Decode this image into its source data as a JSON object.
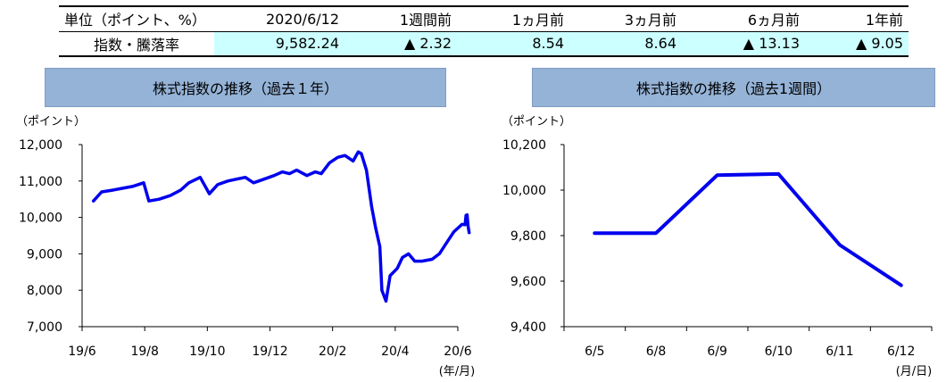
{
  "summary": {
    "headers": [
      "単位（ポイント、%）",
      "2020/6/12",
      "1週間前",
      "1ヵ月前",
      "3ヵ月前",
      "6ヵ月前",
      "1年前"
    ],
    "row_label": "指数・騰落率",
    "values": [
      "9,582.24",
      "▲ 2.32",
      "8.54",
      "8.64",
      "▲ 13.13",
      "▲ 9.05"
    ]
  },
  "colors": {
    "line": "#0000ee",
    "banner": "#95b3d7",
    "highlight": "#ccffff"
  },
  "chart_data": [
    {
      "type": "line",
      "title": "株式指数の推移（過去１年）",
      "y_unit": "（ポイント）",
      "x_unit": "(年/月)",
      "ylim": [
        7000,
        12000
      ],
      "yticks": [
        7000,
        8000,
        9000,
        10000,
        11000,
        12000
      ],
      "ytick_labels": [
        "7,000",
        "8,000",
        "9,000",
        "10,000",
        "11,000",
        "12,000"
      ],
      "xtick_labels": [
        "19/6",
        "19/8",
        "19/10",
        "19/12",
        "20/2",
        "20/4",
        "20/6"
      ],
      "x": [
        "2019-06-12",
        "2019-06-20",
        "2019-07-01",
        "2019-07-10",
        "2019-07-20",
        "2019-07-31",
        "2019-08-05",
        "2019-08-15",
        "2019-08-26",
        "2019-09-05",
        "2019-09-13",
        "2019-09-24",
        "2019-10-03",
        "2019-10-11",
        "2019-10-21",
        "2019-10-29",
        "2019-11-07",
        "2019-11-15",
        "2019-11-25",
        "2019-12-05",
        "2019-12-13",
        "2019-12-20",
        "2019-12-27",
        "2020-01-06",
        "2020-01-14",
        "2020-01-20",
        "2020-01-28",
        "2020-02-05",
        "2020-02-12",
        "2020-02-20",
        "2020-02-25",
        "2020-02-28",
        "2020-03-04",
        "2020-03-09",
        "2020-03-13",
        "2020-03-17",
        "2020-03-19",
        "2020-03-23",
        "2020-03-27",
        "2020-04-03",
        "2020-04-08",
        "2020-04-14",
        "2020-04-20",
        "2020-04-27",
        "2020-05-07",
        "2020-05-14",
        "2020-05-21",
        "2020-05-28",
        "2020-06-05",
        "2020-06-08",
        "2020-06-09",
        "2020-06-10",
        "2020-06-11",
        "2020-06-12"
      ],
      "y": [
        10450,
        10700,
        10750,
        10800,
        10850,
        10950,
        10450,
        10500,
        10600,
        10750,
        10950,
        11100,
        10650,
        10900,
        11000,
        11050,
        11100,
        10950,
        11050,
        11150,
        11250,
        11200,
        11300,
        11150,
        11250,
        11200,
        11500,
        11650,
        11700,
        11550,
        11800,
        11750,
        11300,
        10300,
        9700,
        9200,
        8000,
        7700,
        8400,
        8600,
        8900,
        9000,
        8800,
        8800,
        8850,
        9000,
        9300,
        9600,
        9810,
        9800,
        10060,
        10070,
        9760,
        9582
      ]
    },
    {
      "type": "line",
      "title": "株式指数の推移（過去1週間）",
      "y_unit": "（ポイント）",
      "x_unit": "(月/日)",
      "ylim": [
        9400,
        10200
      ],
      "yticks": [
        9400,
        9600,
        9800,
        10000,
        10200
      ],
      "ytick_labels": [
        "9,400",
        "9,600",
        "9,800",
        "10,000",
        "10,200"
      ],
      "categories": [
        "6/5",
        "6/8",
        "6/9",
        "6/10",
        "6/11",
        "6/12"
      ],
      "values": [
        9811,
        9811,
        10066,
        10071,
        9759,
        9582
      ]
    }
  ]
}
